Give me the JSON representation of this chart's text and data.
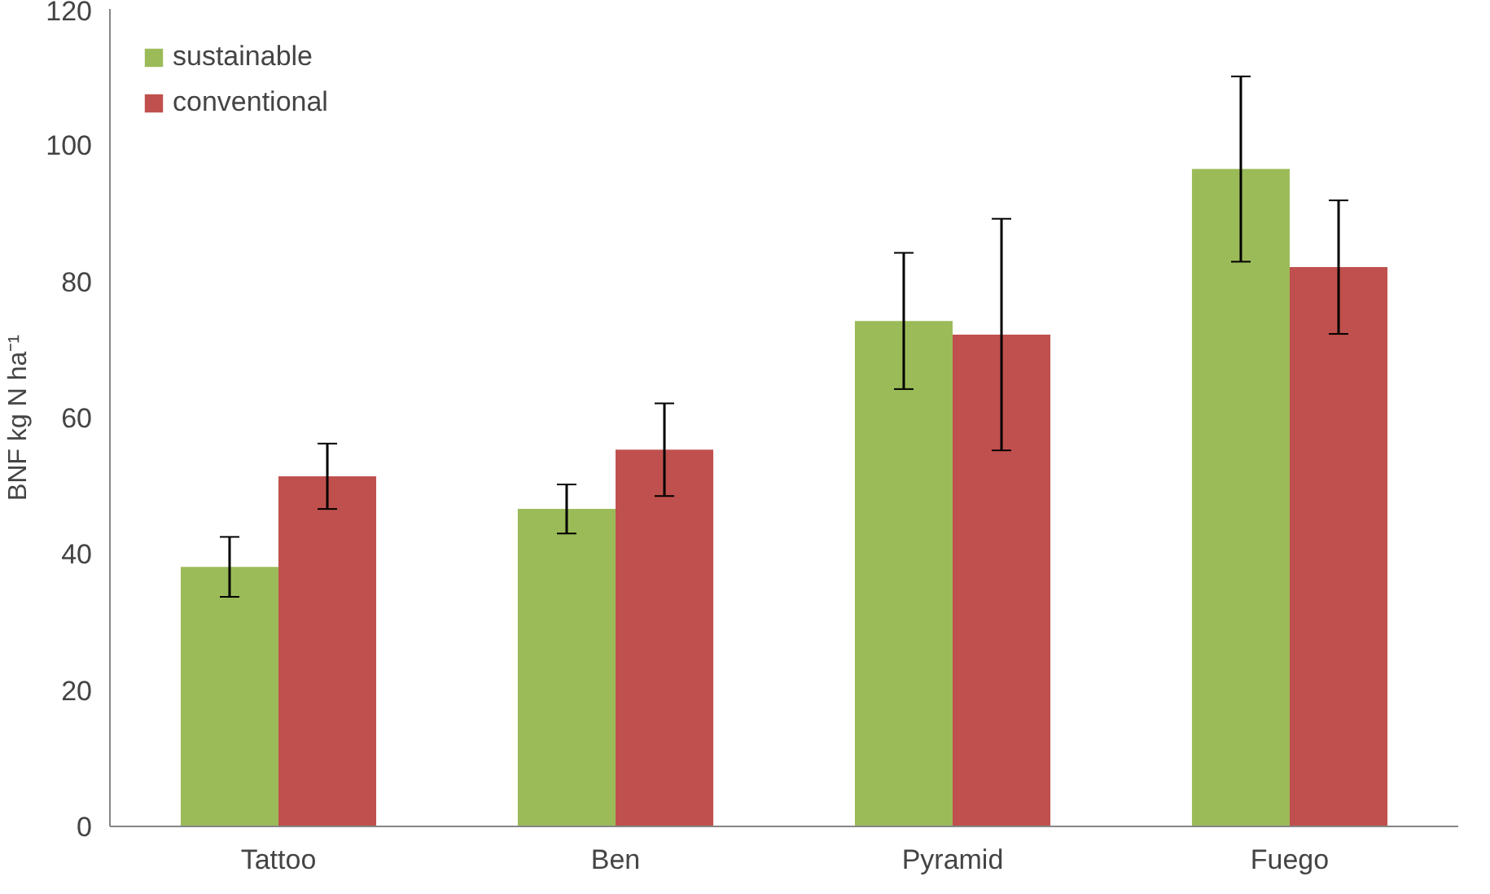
{
  "chart_data": {
    "type": "bar",
    "ylabel": "BNF kg N ha⁻¹",
    "categories": [
      "Tattoo",
      "Ben",
      "Pyramid",
      "Fuego"
    ],
    "series": [
      {
        "name": "sustainable",
        "color": "#9bbb59",
        "values": [
          38.1,
          46.6,
          74.2,
          96.5
        ],
        "errors": [
          4.4,
          3.6,
          10,
          13.6
        ]
      },
      {
        "name": "conventional",
        "color": "#c0504d",
        "values": [
          51.4,
          55.3,
          72.2,
          82.1
        ],
        "errors": [
          4.8,
          6.8,
          17,
          9.8
        ]
      }
    ],
    "ylim": [
      0,
      120
    ],
    "yticks": [
      0,
      20,
      40,
      60,
      80,
      100,
      120
    ],
    "grid": false,
    "legend": "top left"
  }
}
